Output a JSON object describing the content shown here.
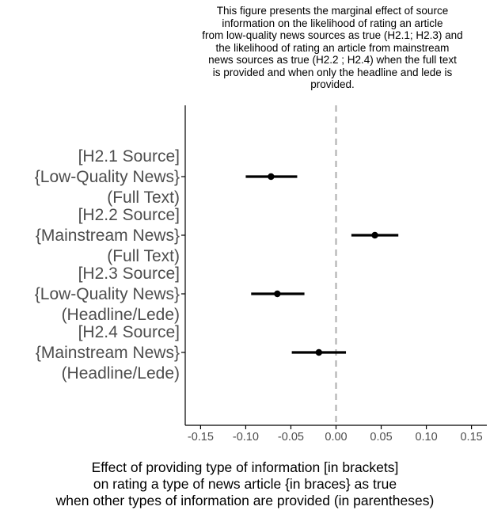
{
  "chart_data": {
    "type": "point-range",
    "title_lines": [
      "This figure presents the marginal effect of source",
      "information on the likelihood of rating an article",
      "from low-quality news sources as true (H2.1; H2.3) and",
      "the likelihood of rating an article from mainstream",
      "news sources as true (H2.2 ; H2.4) when the full text",
      "is provided and when only the headline and lede is",
      "provided."
    ],
    "xlabel_lines": [
      "Effect of providing type of information [in brackets]",
      "on rating a type of news article {in braces} as true",
      "when other types of information are provided (in parentheses)"
    ],
    "xlim": [
      -0.167,
      0.167
    ],
    "xticks": [
      -0.15,
      -0.1,
      -0.05,
      0.0,
      0.05,
      0.1,
      0.15
    ],
    "xtick_labels": [
      "-0.15",
      "-0.10",
      "-0.05",
      "0.00",
      "0.05",
      "0.10",
      "0.15"
    ],
    "reference_line": 0,
    "reference_line_style": "dashed",
    "grid": false,
    "categories": [
      {
        "lines": [
          "[H2.1 Source]",
          "{Low-Quality News}",
          "(Full Text)"
        ],
        "estimate": -0.072,
        "ci": [
          -0.1,
          -0.043
        ]
      },
      {
        "lines": [
          "[H2.2 Source]",
          "{Mainstream News}",
          "(Full Text)"
        ],
        "estimate": 0.043,
        "ci": [
          0.017,
          0.069
        ]
      },
      {
        "lines": [
          "[H2.3 Source]",
          "{Low-Quality News}",
          "(Headline/Lede)"
        ],
        "estimate": -0.065,
        "ci": [
          -0.094,
          -0.035
        ]
      },
      {
        "lines": [
          "[H2.4 Source]",
          "{Mainstream News}",
          "(Headline/Lede)"
        ],
        "estimate": -0.019,
        "ci": [
          -0.049,
          0.011
        ]
      }
    ]
  },
  "colors": {
    "point": "#000000",
    "axis": "#000000",
    "reference_line": "#b3b3b3",
    "category_label": "#4d4d4d",
    "tick_label": "#4d4d4d"
  }
}
